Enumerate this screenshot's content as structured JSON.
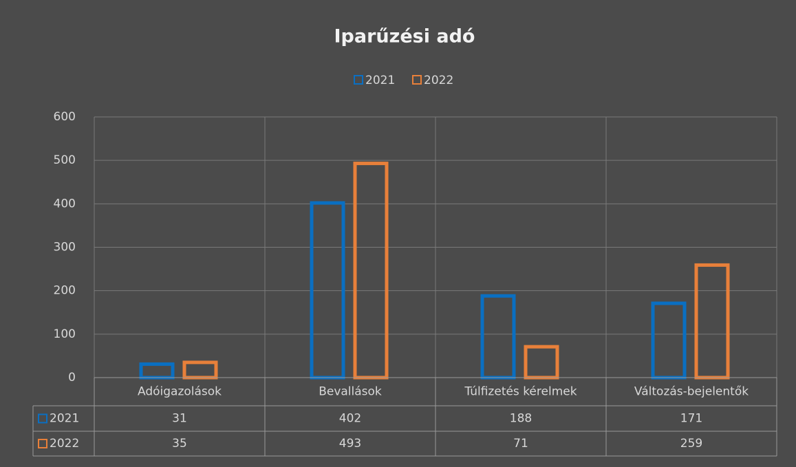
{
  "chart_data": {
    "type": "bar",
    "title": "Iparűzési adó",
    "categories": [
      "Adóigazolások",
      "Bevallások",
      "Túlfizetés kérelmek",
      "Változás-bejelentők"
    ],
    "series": [
      {
        "name": "2021",
        "color": "#0a6fc2",
        "values": [
          31,
          402,
          188,
          171
        ]
      },
      {
        "name": "2022",
        "color": "#e8803a",
        "values": [
          35,
          493,
          71,
          259
        ]
      }
    ],
    "ylim": [
      0,
      600
    ],
    "yticks": [
      0,
      100,
      200,
      300,
      400,
      500,
      600
    ],
    "grid": true,
    "legend": "top",
    "data_table": true
  }
}
